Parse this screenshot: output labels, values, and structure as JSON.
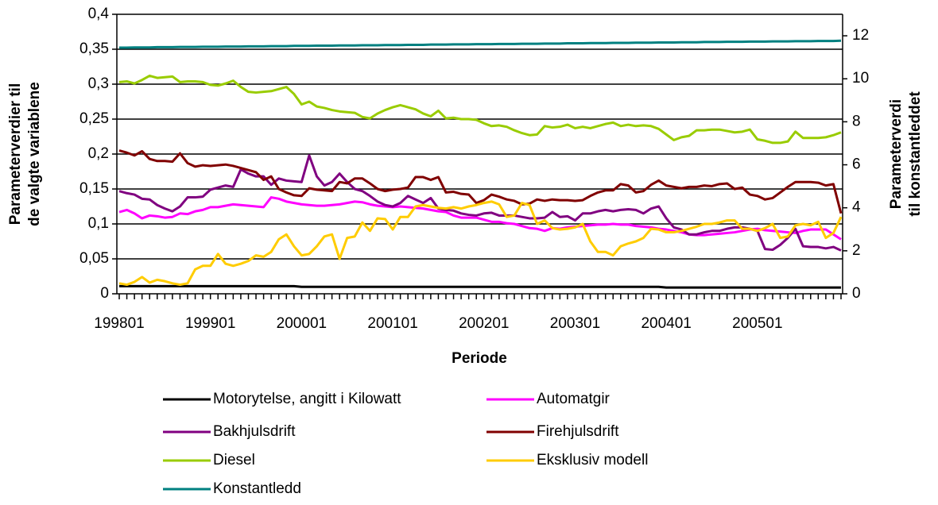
{
  "chart_data": {
    "type": "line",
    "y_label": "Parameterverdier til de valgte variablene",
    "y2_label": "Parameterverdi til konstantleddet",
    "x_label": "Periode",
    "categories": [
      "199801",
      null,
      null,
      null,
      null,
      null,
      null,
      null,
      null,
      null,
      null,
      null,
      "199901",
      null,
      null,
      null,
      null,
      null,
      null,
      null,
      null,
      null,
      null,
      null,
      "200001",
      null,
      null,
      null,
      null,
      null,
      null,
      null,
      null,
      null,
      null,
      null,
      "200101",
      null,
      null,
      null,
      null,
      null,
      null,
      null,
      null,
      null,
      null,
      null,
      "200201",
      null,
      null,
      null,
      null,
      null,
      null,
      null,
      null,
      null,
      null,
      null,
      "200301",
      null,
      null,
      null,
      null,
      null,
      null,
      null,
      null,
      null,
      null,
      null,
      "200401",
      null,
      null,
      null,
      null,
      null,
      null,
      null,
      null,
      null,
      null,
      null,
      "200501",
      null,
      null,
      null,
      null,
      null,
      null,
      null,
      null,
      null,
      null,
      null
    ],
    "ylim": [
      0,
      0.4
    ],
    "yticks": [
      {
        "value": 0,
        "label": "0"
      },
      {
        "value": 0.05,
        "label": "0,05"
      },
      {
        "value": 0.1,
        "label": "0,1"
      },
      {
        "value": 0.15,
        "label": "0,15"
      },
      {
        "value": 0.2,
        "label": "0,2"
      },
      {
        "value": 0.25,
        "label": "0,25"
      },
      {
        "value": 0.3,
        "label": "0,3"
      },
      {
        "value": 0.35,
        "label": "0,35"
      },
      {
        "value": 0.4,
        "label": "0,4"
      }
    ],
    "y2lim": [
      0,
      13
    ],
    "y2ticks": [
      0,
      2,
      4,
      6,
      8,
      10,
      12
    ],
    "grid": true,
    "series": [
      {
        "name": "Motorytelse, angitt i Kilowatt",
        "color": "#000000",
        "values": [
          0.011,
          0.011,
          0.011,
          0.011,
          0.011,
          0.011,
          0.011,
          0.011,
          0.011,
          0.011,
          0.011,
          0.011,
          0.011,
          0.011,
          0.011,
          0.011,
          0.011,
          0.011,
          0.011,
          0.011,
          0.011,
          0.011,
          0.011,
          0.011,
          0.01,
          0.01,
          0.01,
          0.01,
          0.01,
          0.01,
          0.01,
          0.01,
          0.01,
          0.01,
          0.01,
          0.01,
          0.01,
          0.01,
          0.01,
          0.01,
          0.01,
          0.01,
          0.01,
          0.01,
          0.01,
          0.01,
          0.01,
          0.01,
          0.01,
          0.01,
          0.01,
          0.01,
          0.01,
          0.01,
          0.01,
          0.01,
          0.01,
          0.01,
          0.01,
          0.01,
          0.01,
          0.01,
          0.01,
          0.01,
          0.01,
          0.01,
          0.01,
          0.01,
          0.01,
          0.01,
          0.01,
          0.01,
          0.009,
          0.009,
          0.009,
          0.009,
          0.009,
          0.009,
          0.009,
          0.009,
          0.009,
          0.009,
          0.009,
          0.009,
          0.009,
          0.009,
          0.009,
          0.009,
          0.009,
          0.009,
          0.009,
          0.009,
          0.009,
          0.009,
          0.009,
          0.009
        ]
      },
      {
        "name": "Automatgir",
        "color": "#ff00ff",
        "values": [
          0.117,
          0.12,
          0.115,
          0.108,
          0.112,
          0.111,
          0.109,
          0.11,
          0.115,
          0.114,
          0.118,
          0.12,
          0.124,
          0.124,
          0.126,
          0.128,
          0.127,
          0.126,
          0.125,
          0.124,
          0.138,
          0.136,
          0.132,
          0.13,
          0.128,
          0.127,
          0.126,
          0.126,
          0.127,
          0.128,
          0.13,
          0.132,
          0.131,
          0.128,
          0.126,
          0.125,
          0.124,
          0.125,
          0.124,
          0.123,
          0.122,
          0.12,
          0.118,
          0.117,
          0.112,
          0.109,
          0.109,
          0.109,
          0.106,
          0.103,
          0.103,
          0.101,
          0.1,
          0.097,
          0.094,
          0.093,
          0.09,
          0.094,
          0.093,
          0.095,
          0.096,
          0.097,
          0.098,
          0.099,
          0.099,
          0.1,
          0.099,
          0.099,
          0.097,
          0.096,
          0.095,
          0.093,
          0.092,
          0.09,
          0.088,
          0.085,
          0.084,
          0.084,
          0.085,
          0.086,
          0.087,
          0.088,
          0.09,
          0.092,
          0.093,
          0.091,
          0.09,
          0.089,
          0.088,
          0.087,
          0.09,
          0.092,
          0.092,
          0.092,
          0.085,
          0.078
        ]
      },
      {
        "name": "Bakhjulsdrift",
        "color": "#800080",
        "values": [
          0.147,
          0.144,
          0.142,
          0.136,
          0.135,
          0.127,
          0.122,
          0.118,
          0.125,
          0.138,
          0.138,
          0.139,
          0.149,
          0.152,
          0.155,
          0.153,
          0.178,
          0.172,
          0.168,
          0.168,
          0.156,
          0.165,
          0.162,
          0.161,
          0.16,
          0.198,
          0.168,
          0.155,
          0.16,
          0.172,
          0.16,
          0.15,
          0.147,
          0.14,
          0.132,
          0.127,
          0.125,
          0.13,
          0.14,
          0.135,
          0.13,
          0.137,
          0.122,
          0.12,
          0.119,
          0.115,
          0.113,
          0.112,
          0.115,
          0.116,
          0.112,
          0.112,
          0.112,
          0.11,
          0.108,
          0.108,
          0.109,
          0.117,
          0.11,
          0.111,
          0.105,
          0.115,
          0.115,
          0.118,
          0.12,
          0.118,
          0.12,
          0.121,
          0.12,
          0.115,
          0.122,
          0.125,
          0.108,
          0.095,
          0.092,
          0.085,
          0.085,
          0.088,
          0.09,
          0.09,
          0.093,
          0.095,
          0.095,
          0.093,
          0.09,
          0.064,
          0.063,
          0.07,
          0.08,
          0.093,
          0.068,
          0.067,
          0.067,
          0.065,
          0.067,
          0.062
        ]
      },
      {
        "name": "Firehjulsdrift",
        "color": "#800000",
        "values": [
          0.205,
          0.202,
          0.198,
          0.204,
          0.193,
          0.19,
          0.19,
          0.189,
          0.201,
          0.187,
          0.182,
          0.184,
          0.183,
          0.184,
          0.185,
          0.183,
          0.18,
          0.177,
          0.174,
          0.163,
          0.168,
          0.15,
          0.145,
          0.141,
          0.14,
          0.151,
          0.149,
          0.148,
          0.147,
          0.16,
          0.158,
          0.165,
          0.165,
          0.158,
          0.15,
          0.147,
          0.149,
          0.15,
          0.152,
          0.167,
          0.167,
          0.163,
          0.167,
          0.145,
          0.146,
          0.143,
          0.142,
          0.13,
          0.134,
          0.142,
          0.139,
          0.135,
          0.133,
          0.128,
          0.129,
          0.135,
          0.133,
          0.135,
          0.134,
          0.134,
          0.133,
          0.134,
          0.14,
          0.145,
          0.148,
          0.148,
          0.157,
          0.155,
          0.145,
          0.147,
          0.156,
          0.162,
          0.155,
          0.153,
          0.151,
          0.153,
          0.153,
          0.155,
          0.154,
          0.157,
          0.158,
          0.15,
          0.152,
          0.142,
          0.14,
          0.135,
          0.137,
          0.145,
          0.153,
          0.16,
          0.16,
          0.16,
          0.159,
          0.155,
          0.157,
          0.115
        ]
      },
      {
        "name": "Diesel",
        "color": "#99cc00",
        "values": [
          0.303,
          0.304,
          0.301,
          0.306,
          0.312,
          0.309,
          0.31,
          0.311,
          0.303,
          0.304,
          0.304,
          0.303,
          0.299,
          0.298,
          0.301,
          0.305,
          0.296,
          0.289,
          0.288,
          0.289,
          0.29,
          0.293,
          0.296,
          0.286,
          0.271,
          0.275,
          0.268,
          0.266,
          0.263,
          0.261,
          0.26,
          0.259,
          0.253,
          0.251,
          0.258,
          0.263,
          0.267,
          0.27,
          0.267,
          0.264,
          0.258,
          0.254,
          0.262,
          0.251,
          0.252,
          0.25,
          0.25,
          0.249,
          0.244,
          0.24,
          0.241,
          0.239,
          0.234,
          0.23,
          0.227,
          0.228,
          0.24,
          0.238,
          0.239,
          0.242,
          0.237,
          0.239,
          0.237,
          0.24,
          0.243,
          0.245,
          0.24,
          0.242,
          0.24,
          0.241,
          0.24,
          0.236,
          0.228,
          0.22,
          0.224,
          0.226,
          0.234,
          0.234,
          0.235,
          0.235,
          0.233,
          0.231,
          0.232,
          0.235,
          0.221,
          0.219,
          0.216,
          0.216,
          0.218,
          0.232,
          0.223,
          0.223,
          0.223,
          0.224,
          0.227,
          0.231
        ]
      },
      {
        "name": "Eksklusiv modell",
        "color": "#ffcc00",
        "values": [
          0.015,
          0.013,
          0.017,
          0.024,
          0.016,
          0.02,
          0.018,
          0.015,
          0.013,
          0.015,
          0.035,
          0.04,
          0.04,
          0.057,
          0.043,
          0.04,
          0.043,
          0.047,
          0.055,
          0.053,
          0.06,
          0.078,
          0.085,
          0.068,
          0.055,
          0.057,
          0.068,
          0.082,
          0.085,
          0.05,
          0.08,
          0.082,
          0.102,
          0.09,
          0.108,
          0.107,
          0.092,
          0.11,
          0.11,
          0.125,
          0.127,
          0.125,
          0.123,
          0.122,
          0.124,
          0.122,
          0.125,
          0.127,
          0.13,
          0.132,
          0.128,
          0.11,
          0.112,
          0.13,
          0.127,
          0.1,
          0.105,
          0.094,
          0.092,
          0.093,
          0.095,
          0.1,
          0.075,
          0.06,
          0.06,
          0.055,
          0.068,
          0.072,
          0.075,
          0.08,
          0.093,
          0.092,
          0.088,
          0.088,
          0.09,
          0.093,
          0.096,
          0.1,
          0.1,
          0.102,
          0.105,
          0.105,
          0.093,
          0.093,
          0.09,
          0.094,
          0.1,
          0.08,
          0.082,
          0.098,
          0.1,
          0.098,
          0.103,
          0.08,
          0.087,
          0.11
        ]
      },
      {
        "name": "Konstantledd",
        "color": "#008080",
        "axis": "y2",
        "values": [
          11.45,
          11.45,
          11.46,
          11.46,
          11.46,
          11.47,
          11.47,
          11.47,
          11.48,
          11.48,
          11.48,
          11.49,
          11.49,
          11.49,
          11.5,
          11.5,
          11.5,
          11.51,
          11.51,
          11.51,
          11.52,
          11.52,
          11.52,
          11.53,
          11.53,
          11.53,
          11.54,
          11.54,
          11.54,
          11.55,
          11.55,
          11.55,
          11.56,
          11.56,
          11.56,
          11.57,
          11.57,
          11.57,
          11.58,
          11.58,
          11.58,
          11.59,
          11.59,
          11.59,
          11.6,
          11.6,
          11.6,
          11.61,
          11.61,
          11.61,
          11.62,
          11.62,
          11.62,
          11.63,
          11.63,
          11.63,
          11.64,
          11.64,
          11.64,
          11.65,
          11.65,
          11.65,
          11.66,
          11.66,
          11.66,
          11.67,
          11.67,
          11.67,
          11.68,
          11.68,
          11.68,
          11.69,
          11.69,
          11.69,
          11.7,
          11.7,
          11.7,
          11.71,
          11.71,
          11.71,
          11.72,
          11.72,
          11.72,
          11.73,
          11.73,
          11.73,
          11.74,
          11.74,
          11.74,
          11.75,
          11.75,
          11.75,
          11.76,
          11.76,
          11.76,
          11.77
        ]
      }
    ]
  }
}
